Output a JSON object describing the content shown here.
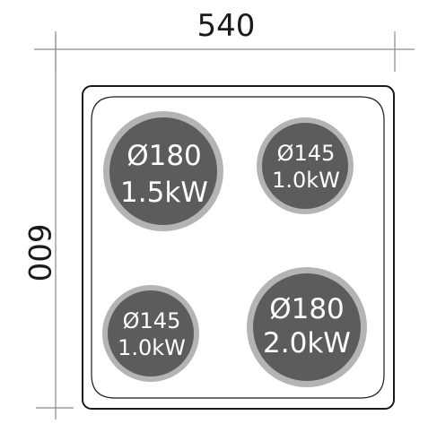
{
  "dimensions": {
    "width_label": "540",
    "depth_label": "600"
  },
  "burners": [
    {
      "id": "front-left-top",
      "diameter": "Ø180",
      "power": "1.5kW"
    },
    {
      "id": "rear-right",
      "diameter": "Ø145",
      "power": "1.0kW"
    },
    {
      "id": "bottom-left",
      "diameter": "Ø145",
      "power": "1.0kW"
    },
    {
      "id": "bottom-right",
      "diameter": "Ø180",
      "power": "2.0kW"
    }
  ],
  "colors": {
    "burner_core": "#5c5c5c",
    "burner_ring": "#b4b4b4",
    "dimension_line": "#8a8a8a",
    "outline": "#1a1a1a"
  }
}
